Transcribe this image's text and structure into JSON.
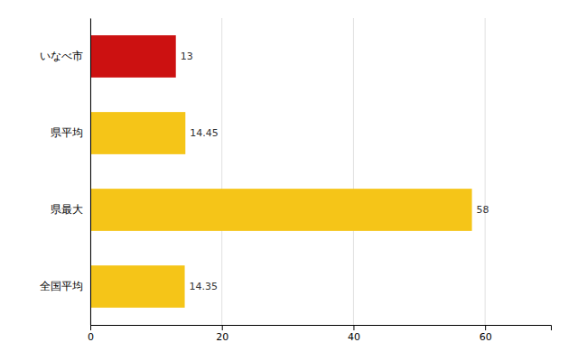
{
  "chart_data": {
    "type": "bar",
    "orientation": "horizontal",
    "categories": [
      "全国平均",
      "県最大",
      "県平均",
      "いなべ市"
    ],
    "values": [
      14.35,
      58,
      14.45,
      13
    ],
    "colors": [
      "#F5C518",
      "#F5C518",
      "#F5C518",
      "#CC1111"
    ],
    "data_labels": true,
    "xlim": [
      0,
      70
    ],
    "xticks": [
      0,
      20,
      40,
      60
    ],
    "grid": true
  }
}
